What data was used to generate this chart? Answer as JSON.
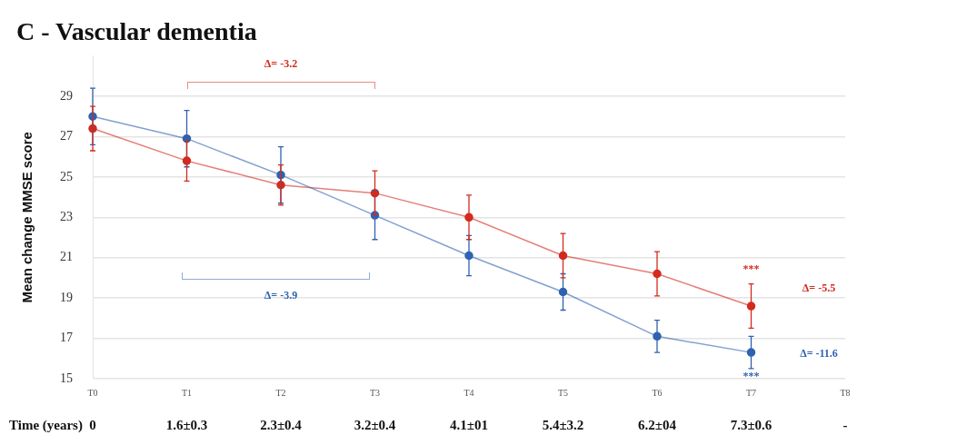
{
  "chart_data": {
    "type": "line",
    "title": "C - Vascular dementia",
    "ylabel": "Mean change MMSE score",
    "xlabel": "Time (years)",
    "categories": [
      "T0",
      "T1",
      "T2",
      "T3",
      "T4",
      "T5",
      "T6",
      "T7",
      "T8"
    ],
    "series": [
      {
        "color": "#2f62b0",
        "values": [
          28.0,
          26.9,
          25.1,
          23.1,
          21.1,
          19.3,
          17.1,
          16.3,
          null
        ],
        "errors": [
          1.4,
          1.4,
          1.4,
          1.2,
          1.0,
          0.9,
          0.8,
          0.8,
          null
        ]
      },
      {
        "color": "#d42a1e",
        "values": [
          27.4,
          25.8,
          24.6,
          24.2,
          23.0,
          21.1,
          20.2,
          18.6,
          null
        ],
        "errors": [
          1.1,
          1.0,
          1.0,
          1.1,
          1.1,
          1.1,
          1.1,
          1.1,
          null
        ]
      }
    ],
    "ylim": [
      15,
      31
    ],
    "yticks": [
      15,
      17,
      19,
      21,
      23,
      25,
      27,
      29
    ],
    "grid": "y",
    "legend": false,
    "marker": "circle",
    "line_style": "solid",
    "annotations": [
      "Δ= -3.2",
      "Δ= -3.9",
      "***",
      "***",
      "Δ= -5.5",
      "Δ= -11.6",
      "0",
      "1.6±0.3",
      "2.3±0.4",
      "3.2±0.4",
      "4.1±01",
      "5.4±3.2",
      "6.2±04",
      "7.3±0.6",
      "-"
    ]
  }
}
